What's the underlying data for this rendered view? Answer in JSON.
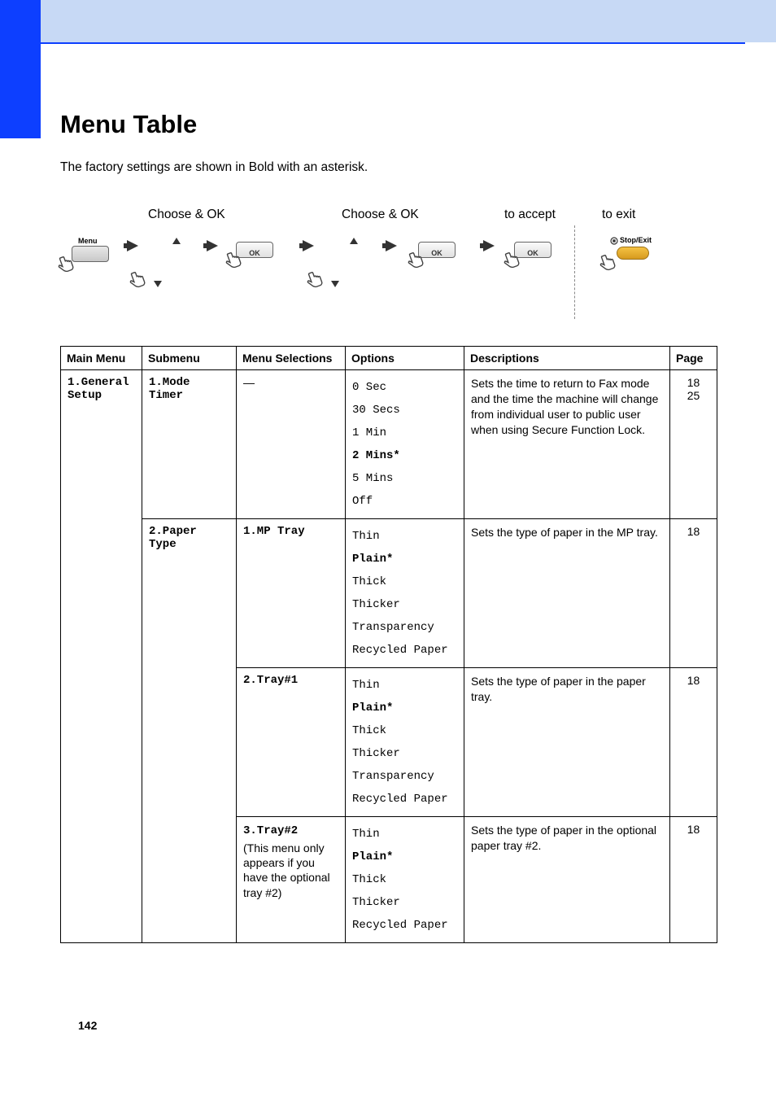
{
  "title": "Menu Table",
  "subtitle": "The factory settings are shown in Bold with an asterisk.",
  "diagram": {
    "labels": {
      "choose1": "Choose & OK",
      "choose2": "Choose & OK",
      "accept": "to accept",
      "exit": "to exit"
    },
    "buttons": {
      "menu": "Menu",
      "ok": "OK",
      "stopexit": "Stop/Exit"
    }
  },
  "headers": {
    "main": "Main Menu",
    "sub": "Submenu",
    "sel": "Menu Selections",
    "opt": "Options",
    "desc": "Descriptions",
    "page": "Page"
  },
  "rows": {
    "r1": {
      "main": "1.General Setup",
      "sub": "1.Mode Timer",
      "sel": "—",
      "opts": [
        "0 Sec",
        "30 Secs",
        "1 Min",
        "2 Mins*",
        "5 Mins",
        "Off"
      ],
      "opt_bold": [
        false,
        false,
        false,
        true,
        false,
        false
      ],
      "desc": "Sets the time to return to Fax mode and the time the machine will change from individual user to public user when using Secure Function Lock.",
      "pages": [
        "18",
        "25"
      ]
    },
    "r2": {
      "sub": "2.Paper Type",
      "sel": "1.MP Tray",
      "opts": [
        "Thin",
        "Plain*",
        "Thick",
        "Thicker",
        "Transparency",
        "Recycled Paper"
      ],
      "opt_bold": [
        false,
        true,
        false,
        false,
        false,
        false
      ],
      "desc": "Sets the type of paper in the MP tray.",
      "pages": [
        "18"
      ]
    },
    "r3": {
      "sel": "2.Tray#1",
      "opts": [
        "Thin",
        "Plain*",
        "Thick",
        "Thicker",
        "Transparency",
        "Recycled Paper"
      ],
      "opt_bold": [
        false,
        true,
        false,
        false,
        false,
        false
      ],
      "desc": "Sets the type of paper in the paper tray.",
      "pages": [
        "18"
      ]
    },
    "r4": {
      "sel": "3.Tray#2",
      "note": "(This menu only appears if you have the optional tray #2)",
      "opts": [
        "Thin",
        "Plain*",
        "Thick",
        "Thicker",
        "Recycled Paper"
      ],
      "opt_bold": [
        false,
        true,
        false,
        false,
        false
      ],
      "desc": "Sets the type of paper in the optional paper tray #2.",
      "pages": [
        "18"
      ]
    }
  },
  "pagenum": "142"
}
